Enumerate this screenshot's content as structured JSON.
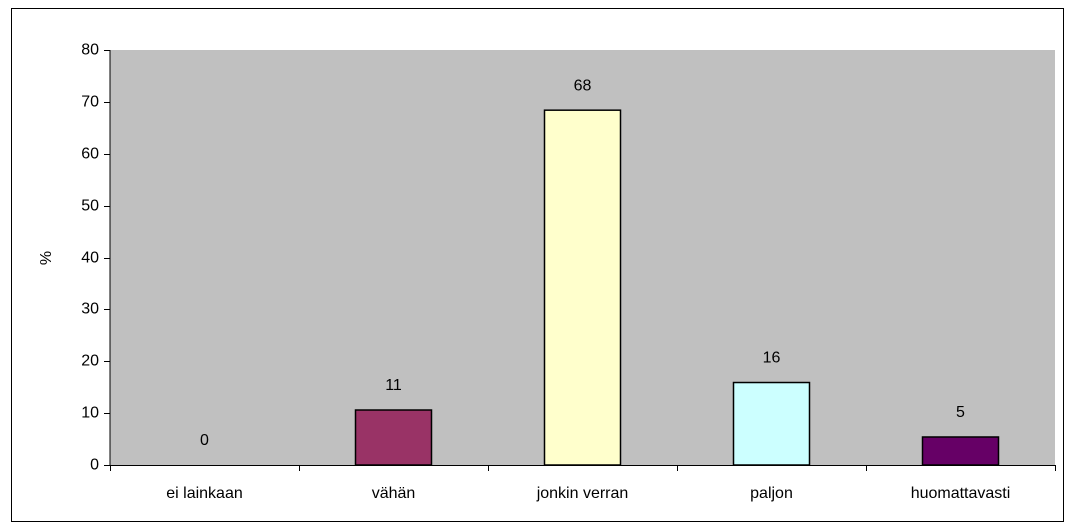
{
  "chart_data": {
    "type": "bar",
    "y_label": "%",
    "categories": [
      "ei lainkaan",
      "vähän",
      "jonkin verran",
      "paljon",
      "huomattavasti"
    ],
    "values": [
      0,
      10.6,
      68.4,
      15.9,
      5.4
    ],
    "value_labels": [
      "0",
      "11",
      "68",
      "16",
      "5"
    ],
    "colors": [
      "#993366",
      "#993366",
      "#ffffcc",
      "#ccffff",
      "#660066"
    ],
    "ylim": [
      0,
      80
    ],
    "yticks": [
      0,
      10,
      20,
      30,
      40,
      50,
      60,
      70,
      80
    ],
    "plot_background": "#c0c0c0"
  }
}
